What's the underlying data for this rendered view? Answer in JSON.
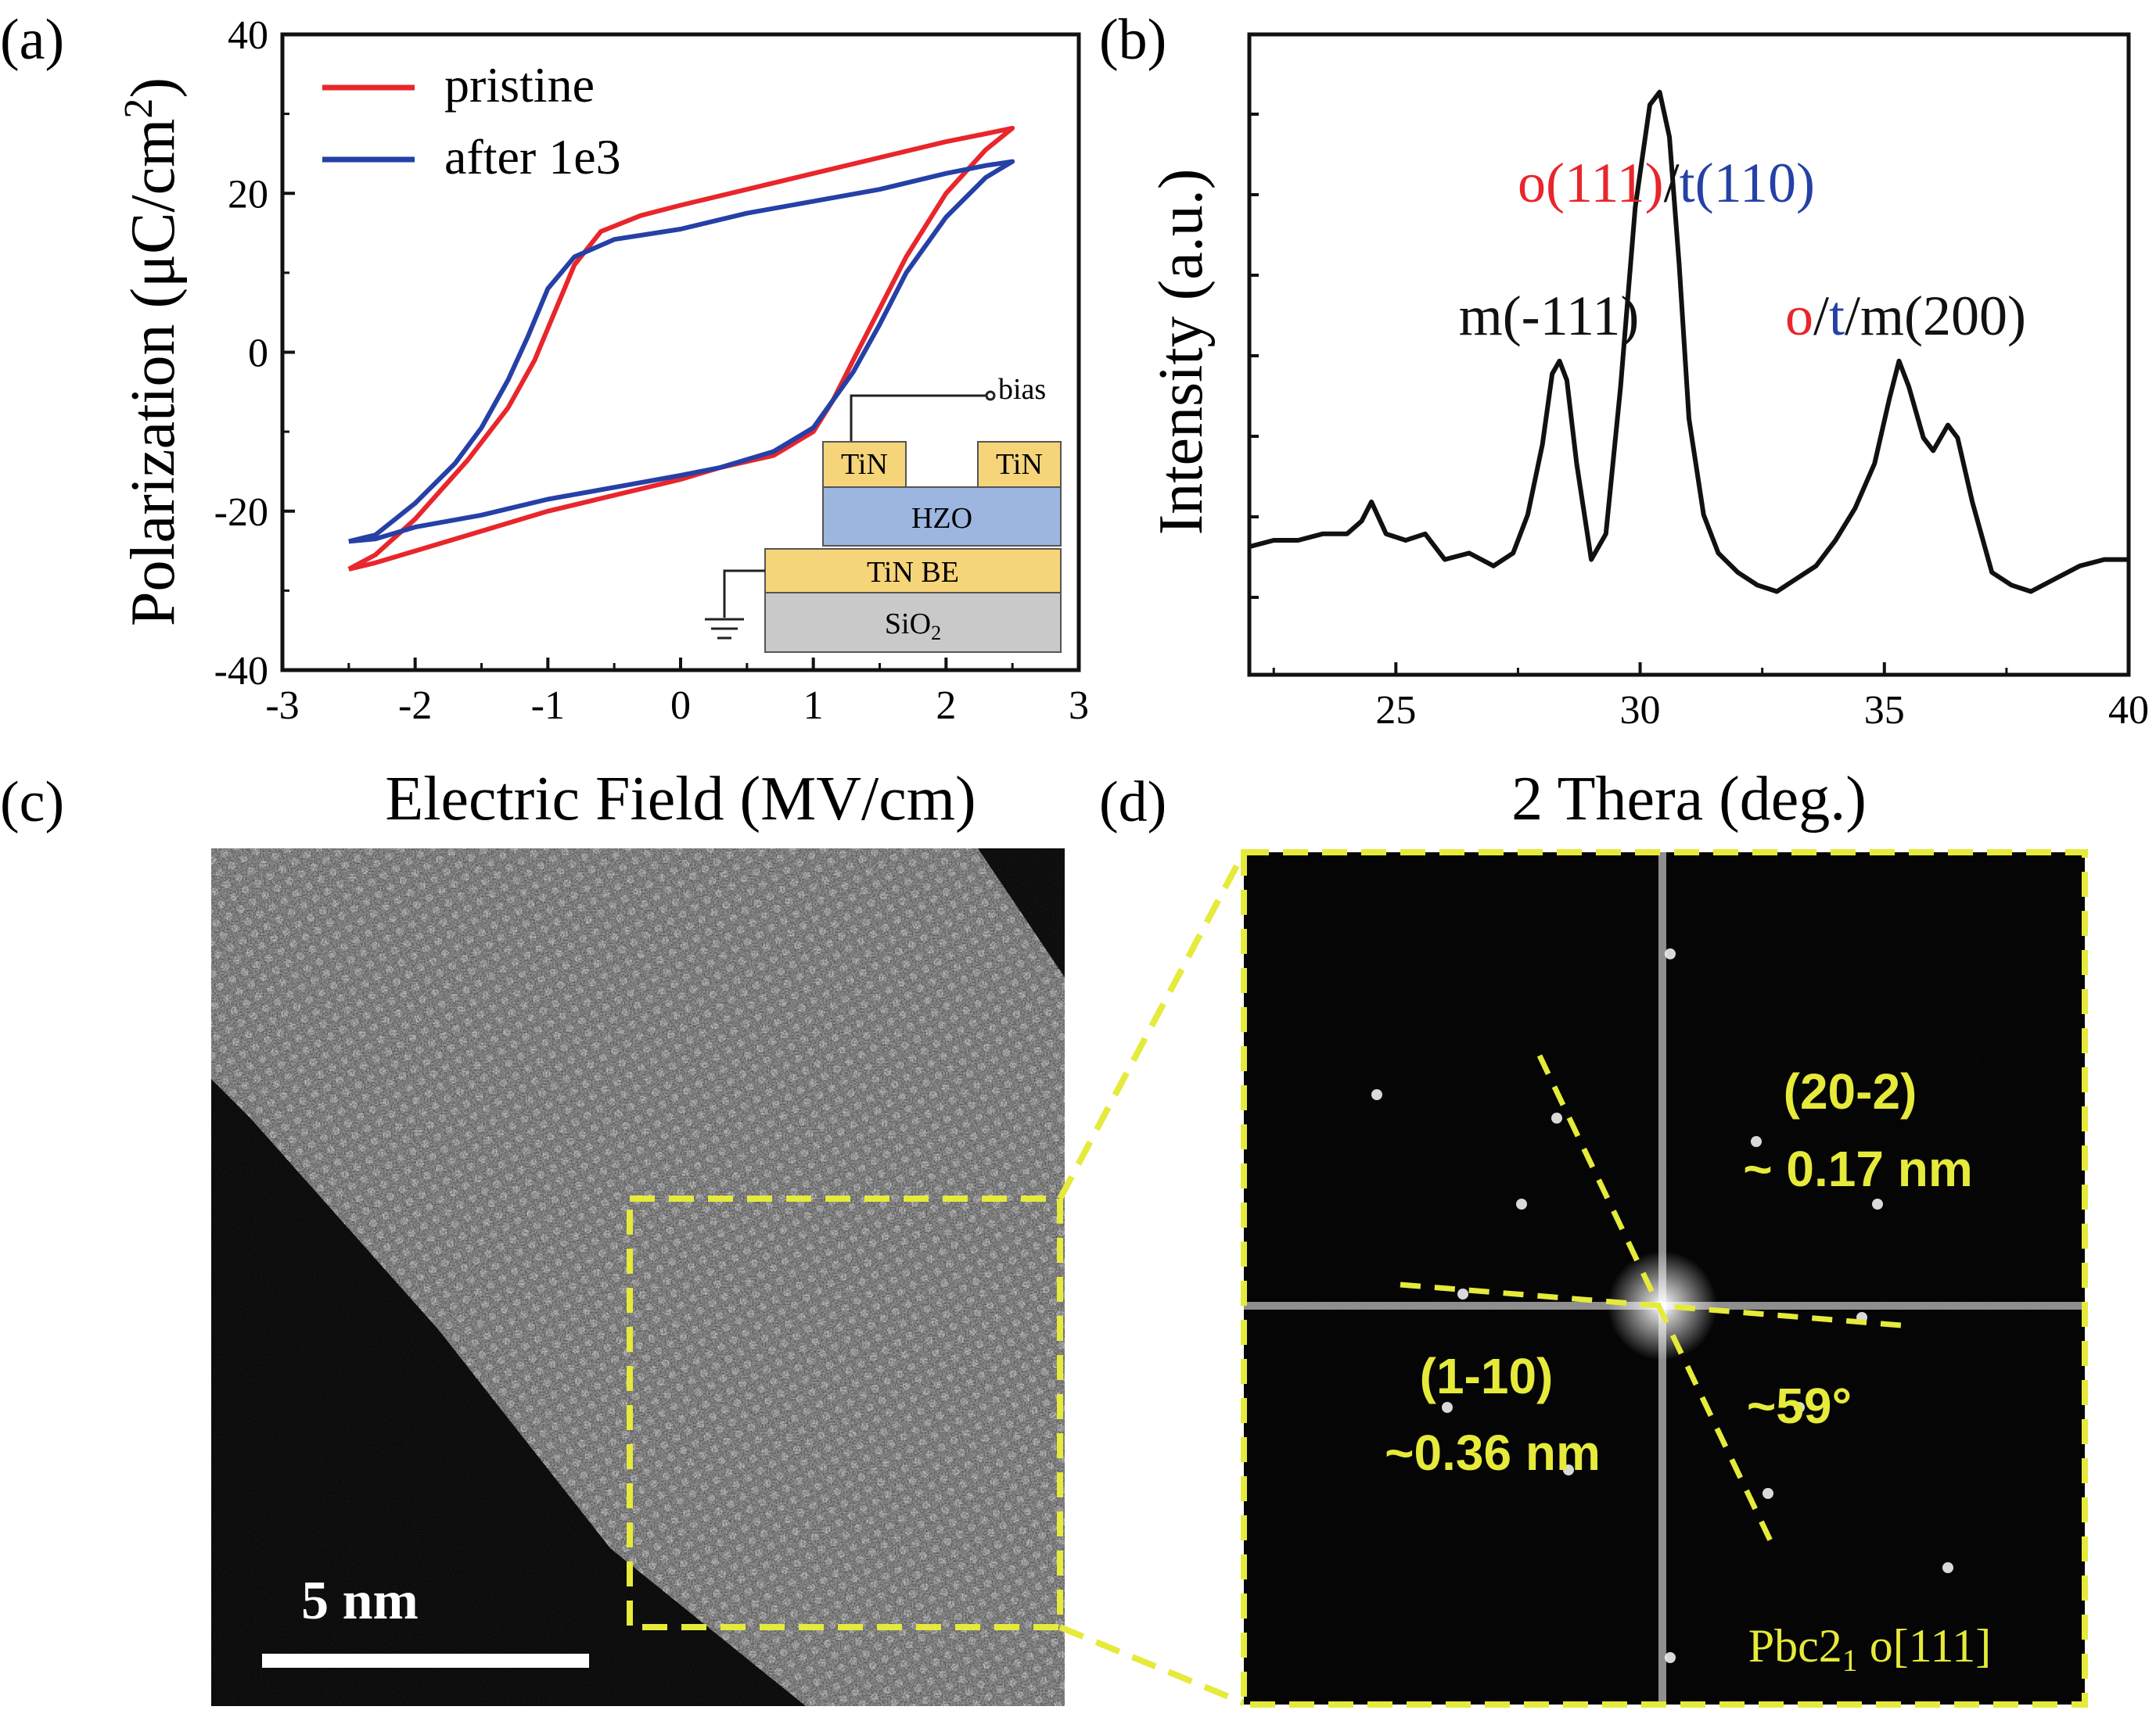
{
  "panel_labels": {
    "a": "(a)",
    "b": "(b)",
    "c": "(c)",
    "d": "(d)"
  },
  "chart_data": [
    {
      "type": "line",
      "xlabel": "Electric Field (MV/cm)",
      "ylabel_text": "Polarization (μC/cm",
      "ylabel_sup": "2",
      "ylabel_close": ")",
      "xlim": [
        -3,
        3
      ],
      "ylim": [
        -40,
        40
      ],
      "xticks": [
        -3,
        -2,
        -1,
        0,
        1,
        2,
        3
      ],
      "yticks": [
        -40,
        -20,
        0,
        20,
        40
      ],
      "legend_position": "top-left",
      "series": [
        {
          "name": "pristine",
          "color": "#e8262b",
          "x": [
            -2.5,
            -2.3,
            -2.0,
            -1.6,
            -1.3,
            -1.1,
            -0.95,
            -0.8,
            -0.6,
            -0.3,
            0.0,
            0.5,
            1.0,
            1.5,
            2.0,
            2.3,
            2.5,
            2.3,
            2.0,
            1.7,
            1.5,
            1.3,
            1.15,
            1.0,
            0.7,
            0.3,
            0.0,
            -0.5,
            -1.0,
            -1.5,
            -2.0,
            -2.3,
            -2.5
          ],
          "y": [
            -27.3,
            -25.5,
            -21.0,
            -13.5,
            -7.0,
            -1.0,
            5.0,
            11.0,
            15.2,
            17.2,
            18.5,
            20.5,
            22.5,
            24.5,
            26.5,
            27.5,
            28.2,
            25.5,
            20.0,
            12.0,
            5.5,
            -1.0,
            -6.0,
            -10.0,
            -13.0,
            -14.5,
            -16.0,
            -18.0,
            -20.0,
            -22.5,
            -25.0,
            -26.5,
            -27.3
          ]
        },
        {
          "name": "after 1e3",
          "color": "#2540a6",
          "x": [
            -2.5,
            -2.3,
            -2.0,
            -1.7,
            -1.5,
            -1.3,
            -1.15,
            -1.0,
            -0.8,
            -0.5,
            0.0,
            0.5,
            1.0,
            1.5,
            2.0,
            2.3,
            2.5,
            2.3,
            2.0,
            1.7,
            1.5,
            1.3,
            1.15,
            1.0,
            0.7,
            0.3,
            0.0,
            -0.5,
            -1.0,
            -1.5,
            -2.0,
            -2.3,
            -2.5
          ],
          "y": [
            -23.8,
            -23.0,
            -19.0,
            -14.0,
            -9.5,
            -3.5,
            2.0,
            8.0,
            12.0,
            14.2,
            15.5,
            17.5,
            19.0,
            20.5,
            22.5,
            23.5,
            24.0,
            22.0,
            17.0,
            10.0,
            3.5,
            -2.5,
            -6.0,
            -9.5,
            -12.5,
            -14.5,
            -15.5,
            -17.0,
            -18.5,
            -20.5,
            -22.0,
            -23.5,
            -23.8
          ]
        }
      ]
    },
    {
      "type": "line",
      "xlabel": "2 Thera (deg.)",
      "ylabel": "Intensity (a.u.)",
      "xlim": [
        22,
        40
      ],
      "xticks": [
        25,
        30,
        35,
        40
      ],
      "ylim": [
        0,
        1
      ],
      "series": [
        {
          "color": "#111111",
          "x": [
            22.0,
            22.5,
            23.0,
            23.5,
            24.0,
            24.3,
            24.5,
            24.8,
            25.2,
            25.6,
            26.0,
            26.5,
            27.0,
            27.4,
            27.7,
            28.0,
            28.2,
            28.35,
            28.5,
            28.7,
            29.0,
            29.3,
            29.6,
            29.9,
            30.2,
            30.4,
            30.6,
            30.8,
            31.0,
            31.3,
            31.6,
            32.0,
            32.4,
            32.8,
            33.2,
            33.6,
            34.0,
            34.4,
            34.8,
            35.1,
            35.3,
            35.5,
            35.8,
            36.0,
            36.3,
            36.5,
            36.8,
            37.2,
            37.6,
            38.0,
            38.5,
            39.0,
            39.5,
            40.0
          ],
          "y": [
            0.2,
            0.21,
            0.21,
            0.22,
            0.22,
            0.24,
            0.27,
            0.22,
            0.21,
            0.22,
            0.18,
            0.19,
            0.17,
            0.19,
            0.25,
            0.36,
            0.47,
            0.49,
            0.46,
            0.33,
            0.18,
            0.22,
            0.45,
            0.73,
            0.89,
            0.91,
            0.84,
            0.64,
            0.4,
            0.25,
            0.19,
            0.16,
            0.14,
            0.13,
            0.15,
            0.17,
            0.21,
            0.26,
            0.33,
            0.43,
            0.49,
            0.45,
            0.37,
            0.35,
            0.39,
            0.37,
            0.27,
            0.16,
            0.14,
            0.13,
            0.15,
            0.17,
            0.18,
            0.18
          ]
        }
      ],
      "peak_labels": [
        {
          "parts": [
            {
              "text": "m(-111)",
              "color": "#111111"
            }
          ]
        },
        {
          "parts": [
            {
              "text": "o(111)",
              "color": "#e8262b"
            },
            {
              "text": "/",
              "color": "#111111"
            },
            {
              "text": "t(110)",
              "color": "#2540a6"
            }
          ]
        },
        {
          "parts": [
            {
              "text": "o",
              "color": "#e8262b"
            },
            {
              "text": "/",
              "color": "#111111"
            },
            {
              "text": "t",
              "color": "#2540a6"
            },
            {
              "text": "/m(200)",
              "color": "#111111"
            }
          ]
        }
      ]
    }
  ],
  "inset": {
    "bias": "bias",
    "tin_left": "TiN",
    "tin_right": "TiN",
    "hzo": "HZO",
    "tin_be": "TiN BE",
    "sio2": "SiO",
    "sio2_sub": "2",
    "colors": {
      "tin": "#f6d47a",
      "hzo": "#9db6e0",
      "sio2": "#c9c9c9"
    }
  },
  "tem": {
    "scalebar_label": "5 nm",
    "box_color": "#e6ea3a"
  },
  "fft": {
    "label_202": "(20-2)",
    "spacing_202": "~ 0.17 nm",
    "label_110": "(1-10)",
    "spacing_110": "~0.36 nm",
    "angle": "~59°",
    "phase_text": "Pbc2",
    "phase_sub": "1",
    "phase_rest": " o[111]",
    "label_color": "#e6ea3a"
  }
}
